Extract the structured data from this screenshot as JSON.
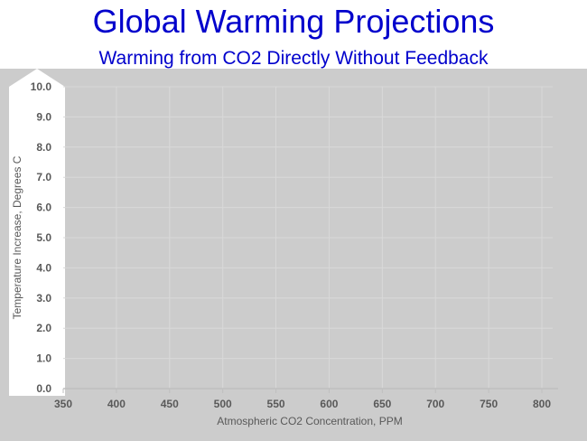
{
  "slide": {
    "title": "Global Warming Projections",
    "subtitle": "Warming from CO2 Directly Without Feedback"
  },
  "colors": {
    "title": "#0000cc",
    "plot_background": "#cccccc",
    "y_axis_panel": "#ffffff",
    "axis_text": "#595959",
    "gridline": "#d9d9d9"
  },
  "chart_data": {
    "type": "line",
    "title": "Global Warming Projections",
    "subtitle": "Warming from CO2 Directly Without Feedback",
    "xlabel": "Atmospheric CO2 Concentration, PPM",
    "ylabel": "Temperature  Increase, Degrees C",
    "x_ticks": [
      "350",
      "400",
      "450",
      "500",
      "550",
      "600",
      "650",
      "700",
      "750",
      "800"
    ],
    "y_ticks": [
      "0.0",
      "1.0",
      "2.0",
      "3.0",
      "4.0",
      "5.0",
      "6.0",
      "7.0",
      "8.0",
      "9.0",
      "10.0"
    ],
    "xlim": [
      350,
      800
    ],
    "ylim": [
      0,
      10
    ],
    "grid": true,
    "series": []
  }
}
